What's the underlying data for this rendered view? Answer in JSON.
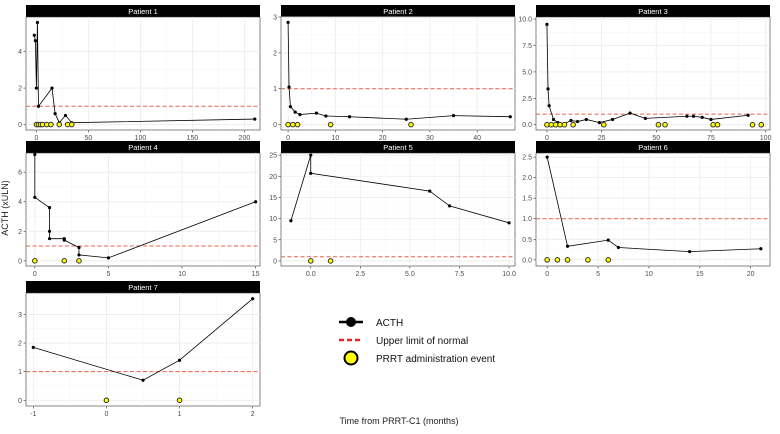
{
  "figure": {
    "y_axis_label": "ACTH (xULN)",
    "x_axis_label": "Time from PRRT-C1 (months)"
  },
  "legend": {
    "items": [
      {
        "kind": "line-point",
        "label": "ACTH"
      },
      {
        "kind": "dashed",
        "label": "Upper limit of normal"
      },
      {
        "kind": "event",
        "label": "PRRT administration event"
      }
    ]
  },
  "colors": {
    "strip": "#000000",
    "strip_text": "#ffffff",
    "grid": "#ebebeb",
    "line": "#000000",
    "uln": "#e8604c",
    "event_fill": "#ffff00",
    "event_stroke": "#333333"
  },
  "chart_data": [
    {
      "type": "line",
      "title": "Patient 1",
      "xlim": [
        -10,
        215
      ],
      "ylim": [
        -0.3,
        5.9
      ],
      "xticks": [
        0,
        50,
        100,
        150,
        200
      ],
      "yticks": [
        0,
        2,
        4
      ],
      "uln": 1,
      "series": [
        {
          "name": "ACTH",
          "x": [
            -2,
            -1,
            0,
            1,
            2,
            15,
            18,
            22,
            28,
            34,
            210
          ],
          "y": [
            4.9,
            4.6,
            2.0,
            5.6,
            1.0,
            2.0,
            0.6,
            0.1,
            0.5,
            0.1,
            0.3
          ]
        }
      ],
      "events": [
        0,
        2,
        4,
        6,
        10,
        14,
        22,
        30,
        34
      ]
    },
    {
      "type": "line",
      "title": "Patient 2",
      "xlim": [
        -1.5,
        48
      ],
      "ylim": [
        -0.15,
        3.0
      ],
      "xticks": [
        0,
        10,
        20,
        30,
        40
      ],
      "yticks": [
        0,
        1,
        2,
        3
      ],
      "uln": 1,
      "series": [
        {
          "name": "ACTH",
          "x": [
            0,
            0.2,
            0.5,
            1.5,
            2.5,
            6,
            8,
            13,
            25,
            35,
            47
          ],
          "y": [
            2.85,
            1.05,
            0.5,
            0.35,
            0.28,
            0.32,
            0.24,
            0.22,
            0.15,
            0.25,
            0.22
          ]
        }
      ],
      "events": [
        0,
        1,
        2,
        9,
        26
      ]
    },
    {
      "type": "line",
      "title": "Patient 3",
      "xlim": [
        -5,
        102
      ],
      "ylim": [
        -0.5,
        10.2
      ],
      "xticks": [
        0,
        25,
        50,
        75,
        100
      ],
      "yticks": [
        0.0,
        2.5,
        5.0,
        7.5,
        10.0
      ],
      "uln": 1,
      "series": [
        {
          "name": "ACTH",
          "x": [
            0,
            0.5,
            1,
            3,
            5,
            8,
            11,
            14,
            18,
            24,
            30,
            38,
            45,
            64,
            67,
            71,
            75,
            92
          ],
          "y": [
            9.5,
            3.4,
            1.8,
            0.5,
            0.2,
            0.1,
            0.4,
            0.3,
            0.5,
            0.2,
            0.5,
            1.1,
            0.6,
            0.8,
            0.8,
            0.7,
            0.5,
            0.9
          ]
        }
      ],
      "events": [
        0,
        2,
        4,
        6,
        8,
        12,
        26,
        51,
        54,
        76,
        78,
        94,
        98
      ]
    },
    {
      "type": "line",
      "title": "Patient 4",
      "xlim": [
        -0.6,
        15.3
      ],
      "ylim": [
        -0.35,
        7.3
      ],
      "xticks": [
        0,
        5,
        10,
        15
      ],
      "yticks": [
        0,
        2,
        4,
        6
      ],
      "uln": 1,
      "series": [
        {
          "name": "ACTH",
          "x": [
            0,
            0,
            1,
            1,
            1,
            2,
            2,
            3,
            3,
            5,
            15
          ],
          "y": [
            7.2,
            4.3,
            3.6,
            2.0,
            1.5,
            1.5,
            1.4,
            0.9,
            0.4,
            0.2,
            4.0
          ]
        }
      ],
      "events": [
        0,
        2,
        3
      ]
    },
    {
      "type": "line",
      "title": "Patient 5",
      "xlim": [
        -1.5,
        10.3
      ],
      "ylim": [
        -1.2,
        25.5
      ],
      "xticks": [
        0.0,
        2.5,
        5.0,
        7.5,
        10.0
      ],
      "yticks": [
        0,
        5,
        10,
        15,
        20,
        25
      ],
      "uln": 1,
      "series": [
        {
          "name": "ACTH",
          "x": [
            -1,
            0,
            0,
            6,
            7,
            10
          ],
          "y": [
            9.5,
            25.0,
            20.7,
            16.5,
            13.0,
            9.0
          ]
        }
      ],
      "events": [
        0,
        1
      ]
    },
    {
      "type": "line",
      "title": "Patient 6",
      "xlim": [
        -1.1,
        21.9
      ],
      "ylim": [
        -0.15,
        2.6
      ],
      "xticks": [
        0,
        5,
        10,
        15,
        20
      ],
      "yticks": [
        0.0,
        0.5,
        1.0,
        1.5,
        2.0,
        2.5
      ],
      "uln": 1,
      "series": [
        {
          "name": "ACTH",
          "x": [
            0,
            2,
            6,
            7,
            14,
            21
          ],
          "y": [
            2.5,
            0.33,
            0.48,
            0.3,
            0.2,
            0.27
          ]
        }
      ],
      "events": [
        0,
        1,
        2,
        4,
        6
      ]
    },
    {
      "type": "line",
      "title": "Patient 7",
      "xlim": [
        -1.1,
        2.1
      ],
      "ylim": [
        -0.2,
        3.75
      ],
      "xticks": [
        -1,
        0,
        1,
        2
      ],
      "yticks": [
        0,
        1,
        2,
        3
      ],
      "uln": 1,
      "series": [
        {
          "name": "ACTH",
          "x": [
            -1,
            0.5,
            1,
            2
          ],
          "y": [
            1.85,
            0.7,
            1.4,
            3.55
          ]
        }
      ],
      "events": [
        0,
        1
      ]
    }
  ]
}
